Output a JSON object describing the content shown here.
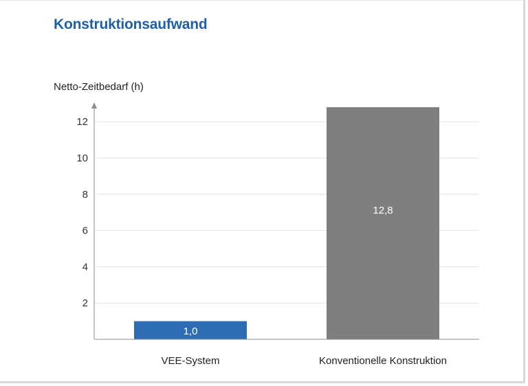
{
  "chart_data": {
    "type": "bar",
    "title": "Konstruktionsaufwand",
    "ylabel": "Netto-Zeitbedarf (h)",
    "xlabel": "",
    "categories": [
      "VEE-System",
      "Konventionelle Konstruktion"
    ],
    "values": [
      1.0,
      12.8
    ],
    "value_labels": [
      "1,0",
      "12,8"
    ],
    "colors": [
      "#2e6db4",
      "#7f7f7f"
    ],
    "ylim": [
      0,
      13
    ],
    "yticks": [
      2,
      4,
      6,
      8,
      10,
      12
    ],
    "grid": true,
    "legend": "none"
  }
}
